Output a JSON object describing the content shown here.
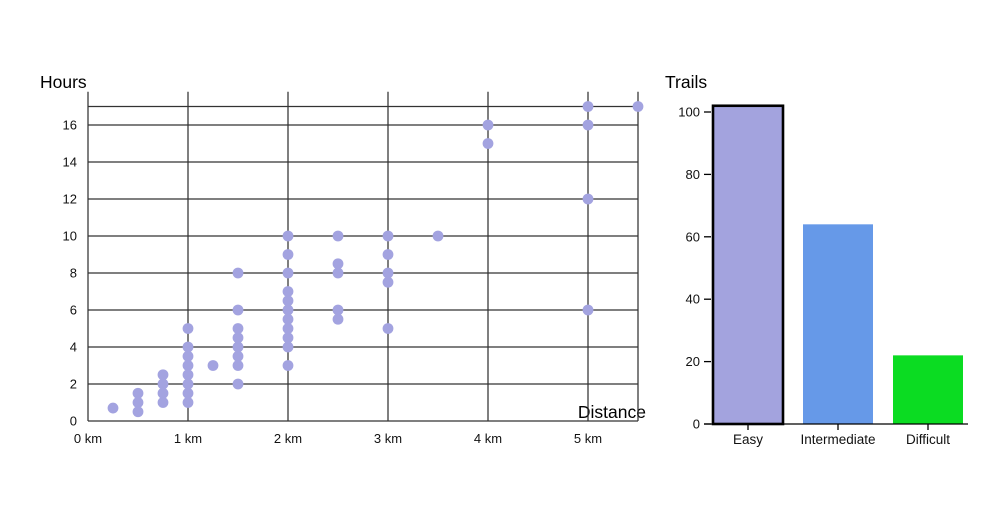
{
  "chart_data": [
    {
      "type": "scatter",
      "title": "Hours",
      "xlabel": "Distance",
      "ylabel": "Hours",
      "x_unit": "km",
      "xlim": [
        0,
        5.5
      ],
      "ylim": [
        0,
        17.8
      ],
      "x_gridlines_km": [
        0,
        1,
        2,
        3,
        4,
        5,
        5.5
      ],
      "x_tick_labels": [
        "0 km",
        "1 km",
        "2 km",
        "3 km",
        "4 km",
        "5 km"
      ],
      "x_tick_km": [
        0,
        1,
        2,
        3,
        4,
        5
      ],
      "y_gridlines": [
        0,
        2,
        4,
        6,
        8,
        10,
        12,
        14,
        16,
        17
      ],
      "y_tick_labels": [
        0,
        2,
        4,
        6,
        8,
        10,
        12,
        14,
        16
      ],
      "grid": true,
      "legend_position": "none",
      "point_color": "#a3a3e0",
      "points": [
        [
          0.25,
          0.7
        ],
        [
          0.5,
          0.5
        ],
        [
          0.5,
          1
        ],
        [
          0.5,
          1.5
        ],
        [
          0.75,
          1
        ],
        [
          0.75,
          1.5
        ],
        [
          0.75,
          2
        ],
        [
          0.75,
          2.5
        ],
        [
          1,
          1
        ],
        [
          1,
          1.5
        ],
        [
          1,
          2
        ],
        [
          1,
          2.5
        ],
        [
          1,
          3
        ],
        [
          1,
          3.5
        ],
        [
          1,
          4
        ],
        [
          1,
          5
        ],
        [
          1.25,
          3
        ],
        [
          1.5,
          2
        ],
        [
          1.5,
          3
        ],
        [
          1.5,
          3.5
        ],
        [
          1.5,
          4
        ],
        [
          1.5,
          4.5
        ],
        [
          1.5,
          5
        ],
        [
          1.5,
          6
        ],
        [
          1.5,
          8
        ],
        [
          2,
          3
        ],
        [
          2,
          4
        ],
        [
          2,
          4.5
        ],
        [
          2,
          5
        ],
        [
          2,
          5.5
        ],
        [
          2,
          6
        ],
        [
          2,
          6.5
        ],
        [
          2,
          7
        ],
        [
          2,
          8
        ],
        [
          2,
          9
        ],
        [
          2,
          10
        ],
        [
          2.5,
          5.5
        ],
        [
          2.5,
          6
        ],
        [
          2.5,
          8
        ],
        [
          2.5,
          8.5
        ],
        [
          2.5,
          10
        ],
        [
          3,
          5
        ],
        [
          3,
          7.5
        ],
        [
          3,
          8
        ],
        [
          3,
          9
        ],
        [
          3,
          10
        ],
        [
          3.5,
          10
        ],
        [
          4,
          15
        ],
        [
          4,
          16
        ],
        [
          5,
          6
        ],
        [
          5,
          12
        ],
        [
          5,
          16
        ],
        [
          5,
          17
        ],
        [
          5.5,
          17
        ]
      ]
    },
    {
      "type": "bar",
      "title": "Trails",
      "xlabel": "",
      "ylabel": "",
      "categories": [
        "Easy",
        "Intermediate",
        "Difficult"
      ],
      "values": [
        102,
        64,
        22
      ],
      "bar_colors": [
        "#a3a3de",
        "#6699e8",
        "#0bdc22"
      ],
      "selected_category": "Easy",
      "selected_border_color": "#000000",
      "ylim": [
        0,
        105
      ],
      "y_ticks": [
        0,
        20,
        40,
        60,
        80,
        100
      ],
      "grid": false,
      "legend_position": "none"
    }
  ]
}
